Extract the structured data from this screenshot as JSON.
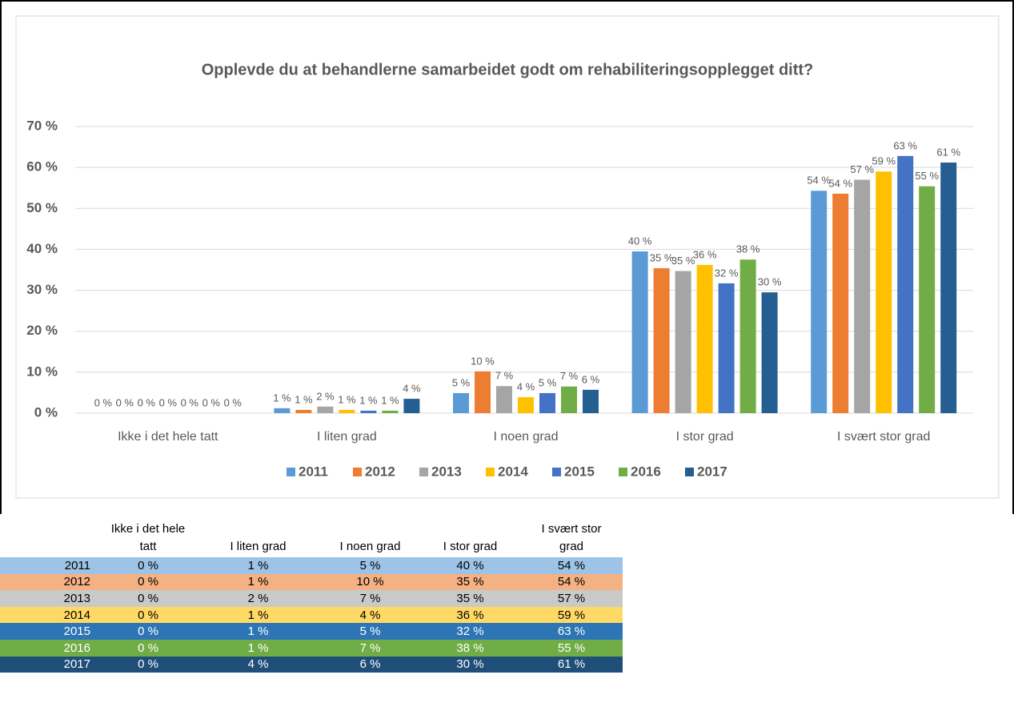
{
  "chart_data": {
    "type": "bar",
    "title": "Opplevde du at behandlerne samarbeidet godt om rehabiliteringsopplegget ditt?",
    "categories": [
      "Ikke i det hele tatt",
      "I liten grad",
      "I noen grad",
      "I stor grad",
      "I svært stor grad"
    ],
    "series": [
      {
        "name": "2011",
        "color": "#5b9bd5",
        "values": [
          0,
          1.2,
          4.9,
          39.5,
          54.3
        ],
        "value_labels": [
          "0 %",
          "1 %",
          "5 %",
          "40 %",
          "54 %"
        ]
      },
      {
        "name": "2012",
        "color": "#ed7d31",
        "values": [
          0,
          0.8,
          10.2,
          35.4,
          53.6
        ],
        "value_labels": [
          "0 %",
          "1 %",
          "10 %",
          "35 %",
          "54 %"
        ]
      },
      {
        "name": "2013",
        "color": "#a5a5a5",
        "values": [
          0,
          1.6,
          6.6,
          34.7,
          57.0
        ],
        "value_labels": [
          "0 %",
          "2 %",
          "7 %",
          "35 %",
          "57 %"
        ]
      },
      {
        "name": "2014",
        "color": "#ffc000",
        "values": [
          0,
          0.8,
          3.9,
          36.2,
          59.0
        ],
        "value_labels": [
          "0 %",
          "1 %",
          "4 %",
          "36 %",
          "59 %"
        ]
      },
      {
        "name": "2015",
        "color": "#4472c4",
        "values": [
          0,
          0.6,
          4.9,
          31.7,
          62.8
        ],
        "value_labels": [
          "0 %",
          "1 %",
          "5 %",
          "32 %",
          "63 %"
        ]
      },
      {
        "name": "2016",
        "color": "#70ad47",
        "values": [
          0,
          0.6,
          6.5,
          37.5,
          55.4
        ],
        "value_labels": [
          "0 %",
          "1 %",
          "7 %",
          "38 %",
          "55 %"
        ]
      },
      {
        "name": "2017",
        "color": "#255e91",
        "values": [
          0,
          3.5,
          5.7,
          29.5,
          61.2
        ],
        "value_labels": [
          "0 %",
          "4 %",
          "6 %",
          "30 %",
          "61 %"
        ]
      }
    ],
    "ylim": [
      0,
      70
    ],
    "yticks": [
      {
        "value": 0,
        "label": "0 %"
      },
      {
        "value": 10,
        "label": "10 %"
      },
      {
        "value": 20,
        "label": "20 %"
      },
      {
        "value": 30,
        "label": "30 %"
      },
      {
        "value": 40,
        "label": "40 %"
      },
      {
        "value": 50,
        "label": "50 %"
      },
      {
        "value": 60,
        "label": "60 %"
      },
      {
        "value": 70,
        "label": "70 %"
      }
    ],
    "grid": true,
    "legend": "bottom"
  }
}
